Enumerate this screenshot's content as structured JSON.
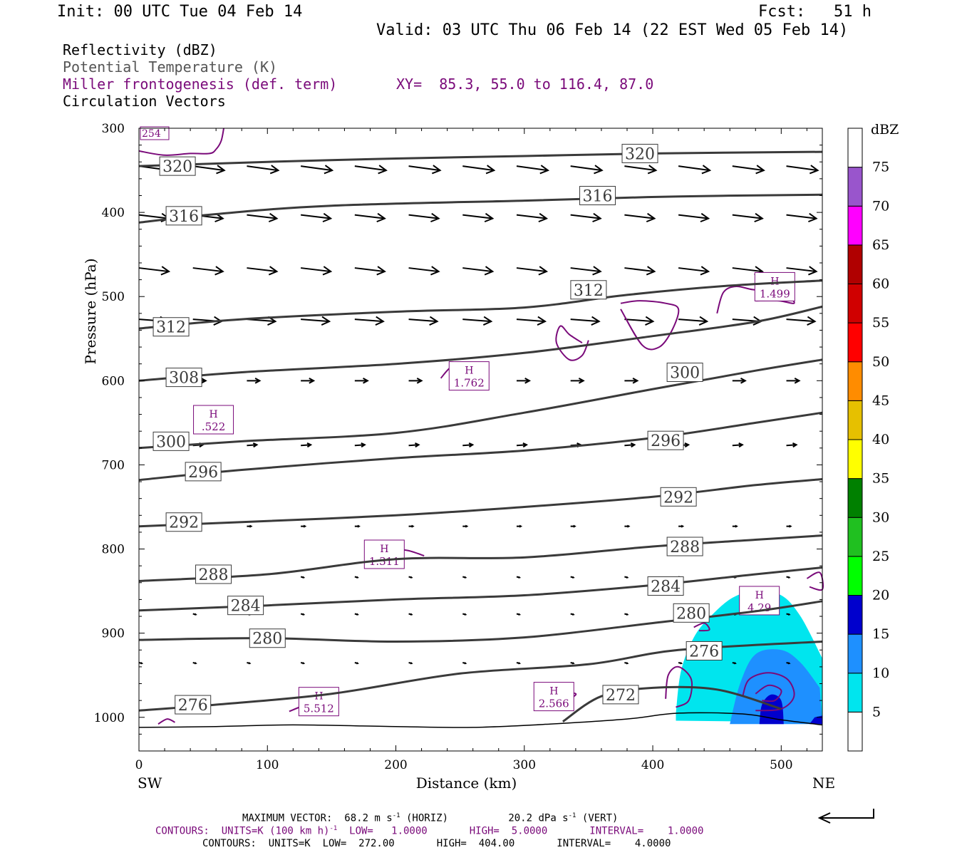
{
  "header": {
    "init": "Init: 00 UTC Tue 04 Feb 14",
    "fcst": "Fcst:   51 h",
    "valid": "Valid: 03 UTC Thu 06 Feb 14 (22 EST Wed 05 Feb 14)"
  },
  "legend": {
    "reflectivity": "Reflectivity (dBZ)",
    "theta": "Potential Temperature (K)",
    "frontogenesis": "Miller frontogenesis (def. term)",
    "xy": "XY=  85.3, 55.0 to 116.4, 87.0",
    "vectors": "Circulation Vectors"
  },
  "footer": {
    "max_vector": "MAXIMUM VECTOR:  68.2 m s",
    "horiz": "(HORIZ)",
    "vert_val": "20.2 dPa s",
    "vert": "(VERT)",
    "contours1_a": "CONTOURS:  UNITS=K (100 km h)",
    "contours1_b": "LOW=   1.0000       HIGH=  5.0000       INTERVAL=    1.0000",
    "contours2": "CONTOURS:  UNITS=K  LOW=  272.00       HIGH=  404.00       INTERVAL=    4.0000",
    "exp": "-1"
  },
  "chart_data": {
    "type": "cross-section",
    "xlabel": "Distance (km)",
    "ylabel": "Pressure (hPa)",
    "x_ticks": [
      0,
      100,
      200,
      300,
      400,
      500
    ],
    "y_ticks": [
      300,
      400,
      500,
      600,
      700,
      800,
      900,
      1000
    ],
    "xlim": [
      0,
      532
    ],
    "ylim": [
      1040,
      300
    ],
    "x_end_labels": {
      "left": "SW",
      "right": "NE"
    },
    "colorbar": {
      "unit": "dBZ",
      "levels": [
        5,
        10,
        15,
        20,
        25,
        30,
        35,
        40,
        45,
        50,
        55,
        60,
        65,
        70,
        75
      ],
      "colors": [
        "#ffffff",
        "#00e5ee",
        "#1e90ff",
        "#0000cd",
        "#00ff00",
        "#20c020",
        "#008000",
        "#ffff00",
        "#e6c000",
        "#ff8c00",
        "#ff0000",
        "#d00000",
        "#b00000",
        "#ff00ff",
        "#9955cc",
        "#ffffff"
      ]
    },
    "theta_contours": [
      {
        "label": "320",
        "points": [
          [
            0,
            345
          ],
          [
            100,
            340
          ],
          [
            200,
            336
          ],
          [
            300,
            333
          ],
          [
            400,
            330
          ],
          [
            532,
            328
          ]
        ],
        "labels_at": [
          [
            30,
            345
          ],
          [
            390,
            330
          ]
        ]
      },
      {
        "label": "316",
        "points": [
          [
            0,
            412
          ],
          [
            60,
            402
          ],
          [
            150,
            392
          ],
          [
            300,
            386
          ],
          [
            420,
            381
          ],
          [
            532,
            379
          ]
        ],
        "labels_at": [
          [
            35,
            404
          ],
          [
            357,
            380
          ]
        ]
      },
      {
        "label": "312",
        "points": [
          [
            0,
            538
          ],
          [
            80,
            527
          ],
          [
            200,
            518
          ],
          [
            300,
            513
          ],
          [
            380,
            498
          ],
          [
            460,
            487
          ],
          [
            532,
            481
          ]
        ],
        "labels_at": [
          [
            25,
            536
          ],
          [
            350,
            492
          ]
        ]
      },
      {
        "label": "308",
        "points": [
          [
            0,
            600
          ],
          [
            80,
            590
          ],
          [
            200,
            580
          ],
          [
            300,
            567
          ],
          [
            400,
            547
          ],
          [
            480,
            530
          ],
          [
            532,
            512
          ]
        ],
        "labels_at": [
          [
            35,
            596
          ]
        ]
      },
      {
        "label": "300",
        "points": [
          [
            0,
            680
          ],
          [
            80,
            672
          ],
          [
            200,
            662
          ],
          [
            300,
            638
          ],
          [
            400,
            610
          ],
          [
            480,
            588
          ],
          [
            532,
            575
          ]
        ],
        "labels_at": [
          [
            25,
            672
          ],
          [
            425,
            590
          ]
        ]
      },
      {
        "label": "296",
        "points": [
          [
            0,
            718
          ],
          [
            80,
            706
          ],
          [
            200,
            692
          ],
          [
            300,
            683
          ],
          [
            400,
            668
          ],
          [
            480,
            650
          ],
          [
            532,
            638
          ]
        ],
        "labels_at": [
          [
            50,
            708
          ],
          [
            410,
            671
          ]
        ]
      },
      {
        "label": "292",
        "points": [
          [
            0,
            773
          ],
          [
            80,
            768
          ],
          [
            200,
            760
          ],
          [
            300,
            750
          ],
          [
            400,
            738
          ],
          [
            480,
            724
          ],
          [
            532,
            717
          ]
        ],
        "labels_at": [
          [
            35,
            768
          ],
          [
            420,
            738
          ]
        ]
      },
      {
        "label": "288",
        "points": [
          [
            0,
            838
          ],
          [
            100,
            830
          ],
          [
            200,
            812
          ],
          [
            300,
            810
          ],
          [
            400,
            797
          ],
          [
            480,
            789
          ],
          [
            532,
            784
          ]
        ],
        "labels_at": [
          [
            58,
            830
          ],
          [
            425,
            797
          ]
        ]
      },
      {
        "label": "284",
        "points": [
          [
            0,
            873
          ],
          [
            100,
            867
          ],
          [
            200,
            860
          ],
          [
            300,
            855
          ],
          [
            400,
            843
          ],
          [
            480,
            830
          ],
          [
            532,
            822
          ]
        ],
        "labels_at": [
          [
            83,
            867
          ],
          [
            410,
            844
          ]
        ]
      },
      {
        "label": "280",
        "points": [
          [
            0,
            908
          ],
          [
            100,
            906
          ],
          [
            200,
            910
          ],
          [
            300,
            905
          ],
          [
            400,
            888
          ],
          [
            480,
            874
          ],
          [
            532,
            862
          ]
        ],
        "labels_at": [
          [
            100,
            906
          ],
          [
            430,
            876
          ]
        ]
      },
      {
        "label": "276",
        "points": [
          [
            0,
            992
          ],
          [
            60,
            985
          ],
          [
            150,
            972
          ],
          [
            250,
            948
          ],
          [
            350,
            937
          ],
          [
            420,
            920
          ],
          [
            532,
            910
          ]
        ],
        "labels_at": [
          [
            42,
            985
          ],
          [
            440,
            921
          ]
        ]
      },
      {
        "label": "272",
        "points": [
          [
            330,
            1005
          ],
          [
            360,
            975
          ],
          [
            400,
            965
          ],
          [
            450,
            967
          ],
          [
            500,
            990
          ]
        ],
        "labels_at": [
          [
            375,
            973
          ]
        ]
      }
    ],
    "frontogenesis_maxima": [
      {
        "label": "H",
        "value": ".522",
        "x": 58,
        "p": 648
      },
      {
        "label": "H",
        "value": "1.762",
        "x": 257,
        "p": 596
      },
      {
        "label": "H",
        "value": "1.311",
        "x": 191,
        "p": 808
      },
      {
        "label": "H",
        "value": "1.499",
        "x": 495,
        "p": 490
      },
      {
        "label": "H",
        "value": "4.29",
        "x": 483,
        "p": 863
      },
      {
        "label": "H",
        "value": "5.512",
        "x": 140,
        "p": 983
      },
      {
        "label": "H",
        "value": "2.566",
        "x": 323,
        "p": 977
      }
    ],
    "corner_label": "254"
  }
}
